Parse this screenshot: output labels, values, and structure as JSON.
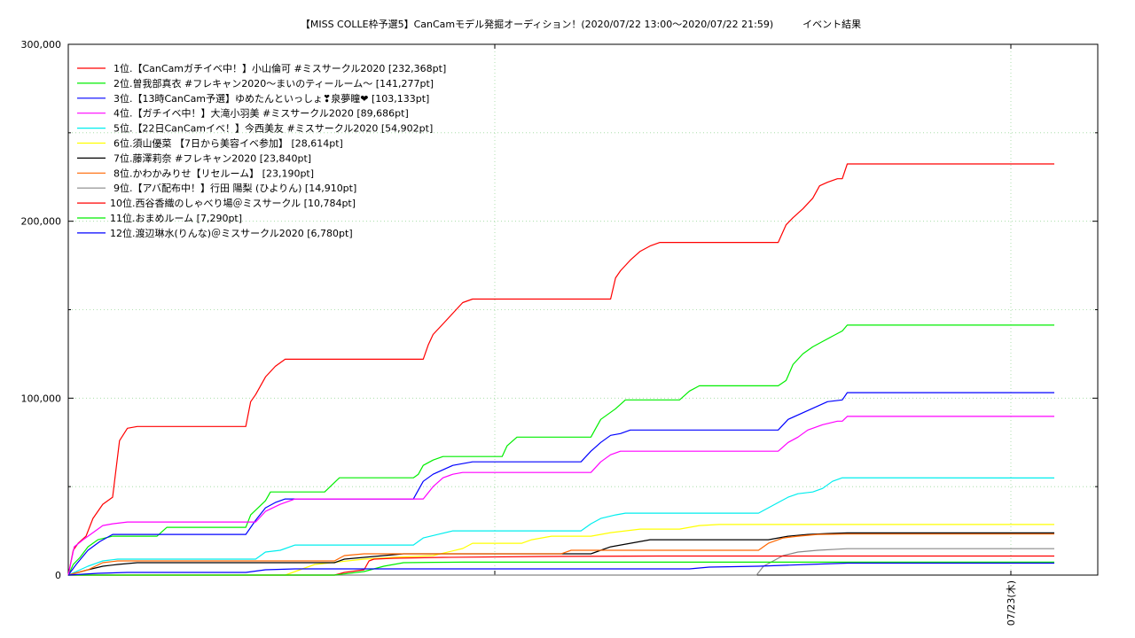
{
  "chart_data": {
    "type": "line",
    "title": "【MISS COLLE枠予選5】CanCamモデル発掘オーディション！(2020/07/22 13:00〜2020/07/22 21:59)　　　イベント結果",
    "xlabel": "",
    "ylabel": "",
    "ylim": [
      0,
      300000
    ],
    "xlim": [
      0,
      1
    ],
    "y_ticks": [
      "0",
      "100,000",
      "200,000",
      "300,000"
    ],
    "x_ticks": [
      {
        "x": 0.95,
        "label": "07/23(木)"
      }
    ],
    "grid": true,
    "legend_position": "top-left",
    "series": [
      {
        "name": "1位.【CanCamガチイベ中！】小山倫可 #ミスサークル2020 [232,368pt]",
        "color": "#ff0000",
        "points": [
          [
            0,
            0
          ],
          [
            0.005,
            14000
          ],
          [
            0.01,
            18000
          ],
          [
            0.018,
            22000
          ],
          [
            0.025,
            32000
          ],
          [
            0.035,
            40000
          ],
          [
            0.045,
            44000
          ],
          [
            0.052,
            76000
          ],
          [
            0.06,
            83000
          ],
          [
            0.07,
            84000
          ],
          [
            0.18,
            84000
          ],
          [
            0.185,
            98000
          ],
          [
            0.19,
            102000
          ],
          [
            0.2,
            112000
          ],
          [
            0.21,
            118000
          ],
          [
            0.22,
            122000
          ],
          [
            0.36,
            122000
          ],
          [
            0.365,
            130000
          ],
          [
            0.37,
            136000
          ],
          [
            0.38,
            142000
          ],
          [
            0.39,
            148000
          ],
          [
            0.4,
            154000
          ],
          [
            0.41,
            156000
          ],
          [
            0.55,
            156000
          ],
          [
            0.555,
            168000
          ],
          [
            0.56,
            172000
          ],
          [
            0.57,
            178000
          ],
          [
            0.58,
            183000
          ],
          [
            0.59,
            186000
          ],
          [
            0.6,
            188000
          ],
          [
            0.72,
            188000
          ],
          [
            0.728,
            198000
          ],
          [
            0.735,
            202000
          ],
          [
            0.745,
            207000
          ],
          [
            0.755,
            213000
          ],
          [
            0.762,
            220000
          ],
          [
            0.77,
            222000
          ],
          [
            0.78,
            224000
          ],
          [
            0.785,
            224000
          ],
          [
            0.79,
            232368
          ],
          [
            1,
            232368
          ]
        ]
      },
      {
        "name": "2位.曽我部真衣 #フレキャン2020〜まいのティールーム〜 [141,277pt]",
        "color": "#00ee00",
        "points": [
          [
            0,
            0
          ],
          [
            0.005,
            6000
          ],
          [
            0.012,
            10000
          ],
          [
            0.02,
            16000
          ],
          [
            0.03,
            20000
          ],
          [
            0.045,
            22000
          ],
          [
            0.09,
            22000
          ],
          [
            0.1,
            27000
          ],
          [
            0.18,
            27000
          ],
          [
            0.185,
            34000
          ],
          [
            0.2,
            42000
          ],
          [
            0.205,
            47000
          ],
          [
            0.26,
            47000
          ],
          [
            0.275,
            55000
          ],
          [
            0.35,
            55000
          ],
          [
            0.355,
            57000
          ],
          [
            0.36,
            62000
          ],
          [
            0.37,
            65000
          ],
          [
            0.38,
            67000
          ],
          [
            0.44,
            67000
          ],
          [
            0.445,
            73000
          ],
          [
            0.455,
            78000
          ],
          [
            0.53,
            78000
          ],
          [
            0.535,
            83000
          ],
          [
            0.54,
            88000
          ],
          [
            0.555,
            94000
          ],
          [
            0.565,
            99000
          ],
          [
            0.62,
            99000
          ],
          [
            0.63,
            104000
          ],
          [
            0.64,
            107000
          ],
          [
            0.72,
            107000
          ],
          [
            0.728,
            110000
          ],
          [
            0.735,
            119000
          ],
          [
            0.745,
            125000
          ],
          [
            0.755,
            129000
          ],
          [
            0.765,
            132000
          ],
          [
            0.775,
            135000
          ],
          [
            0.785,
            138000
          ],
          [
            0.79,
            141277
          ],
          [
            1,
            141277
          ]
        ]
      },
      {
        "name": "3位.【13時CanCam予選】ゆめたんといっしょ❣泉夢瞳❤ [103,133pt]",
        "color": "#0000ff",
        "points": [
          [
            0,
            0
          ],
          [
            0.008,
            6000
          ],
          [
            0.02,
            14000
          ],
          [
            0.032,
            19000
          ],
          [
            0.045,
            23000
          ],
          [
            0.18,
            23000
          ],
          [
            0.19,
            31000
          ],
          [
            0.2,
            38000
          ],
          [
            0.21,
            41000
          ],
          [
            0.22,
            43000
          ],
          [
            0.35,
            43000
          ],
          [
            0.36,
            53000
          ],
          [
            0.37,
            57000
          ],
          [
            0.39,
            62000
          ],
          [
            0.41,
            64000
          ],
          [
            0.52,
            64000
          ],
          [
            0.53,
            70000
          ],
          [
            0.54,
            75000
          ],
          [
            0.55,
            79000
          ],
          [
            0.56,
            80000
          ],
          [
            0.57,
            82000
          ],
          [
            0.72,
            82000
          ],
          [
            0.73,
            88000
          ],
          [
            0.75,
            93000
          ],
          [
            0.77,
            98000
          ],
          [
            0.785,
            99000
          ],
          [
            0.79,
            103133
          ],
          [
            1,
            103133
          ]
        ]
      },
      {
        "name": "4位.【ガチイベ中！】大滝小羽美 #ミスサークル2020 [89,686pt]",
        "color": "#ff00ff",
        "points": [
          [
            0,
            0
          ],
          [
            0.006,
            16000
          ],
          [
            0.015,
            20000
          ],
          [
            0.025,
            24000
          ],
          [
            0.035,
            28000
          ],
          [
            0.045,
            29000
          ],
          [
            0.06,
            30000
          ],
          [
            0.19,
            30000
          ],
          [
            0.2,
            36000
          ],
          [
            0.215,
            40000
          ],
          [
            0.23,
            43000
          ],
          [
            0.36,
            43000
          ],
          [
            0.37,
            50000
          ],
          [
            0.38,
            55000
          ],
          [
            0.39,
            57000
          ],
          [
            0.4,
            58000
          ],
          [
            0.53,
            58000
          ],
          [
            0.54,
            64000
          ],
          [
            0.55,
            68000
          ],
          [
            0.56,
            70000
          ],
          [
            0.72,
            70000
          ],
          [
            0.73,
            75000
          ],
          [
            0.74,
            78000
          ],
          [
            0.75,
            82000
          ],
          [
            0.765,
            85000
          ],
          [
            0.78,
            87000
          ],
          [
            0.785,
            87000
          ],
          [
            0.79,
            89686
          ],
          [
            1,
            89686
          ]
        ]
      },
      {
        "name": "5位.【22日CanCamイベ！】今西美友 #ミスサークル2020 [54,902pt]",
        "color": "#00eeee",
        "points": [
          [
            0,
            0
          ],
          [
            0.02,
            5000
          ],
          [
            0.035,
            8000
          ],
          [
            0.05,
            9000
          ],
          [
            0.19,
            9000
          ],
          [
            0.2,
            13000
          ],
          [
            0.215,
            14000
          ],
          [
            0.23,
            17000
          ],
          [
            0.35,
            17000
          ],
          [
            0.36,
            21000
          ],
          [
            0.375,
            23000
          ],
          [
            0.39,
            25000
          ],
          [
            0.52,
            25000
          ],
          [
            0.53,
            29000
          ],
          [
            0.54,
            32000
          ],
          [
            0.555,
            34000
          ],
          [
            0.565,
            35000
          ],
          [
            0.7,
            35000
          ],
          [
            0.71,
            38000
          ],
          [
            0.72,
            41000
          ],
          [
            0.73,
            44000
          ],
          [
            0.74,
            46000
          ],
          [
            0.755,
            47000
          ],
          [
            0.765,
            49000
          ],
          [
            0.775,
            53000
          ],
          [
            0.785,
            55000
          ],
          [
            1,
            54902
          ]
        ]
      },
      {
        "name": "6位.須山優菜 【7日から美容イベ参加】 [28,614pt]",
        "color": "#ffff00",
        "points": [
          [
            0,
            0
          ],
          [
            0.22,
            0
          ],
          [
            0.25,
            6000
          ],
          [
            0.3,
            9000
          ],
          [
            0.33,
            10000
          ],
          [
            0.37,
            11000
          ],
          [
            0.4,
            15000
          ],
          [
            0.41,
            18000
          ],
          [
            0.46,
            18000
          ],
          [
            0.47,
            20000
          ],
          [
            0.49,
            22000
          ],
          [
            0.53,
            22000
          ],
          [
            0.54,
            23000
          ],
          [
            0.55,
            24000
          ],
          [
            0.58,
            26000
          ],
          [
            0.62,
            26000
          ],
          [
            0.64,
            28000
          ],
          [
            0.66,
            28600
          ],
          [
            1,
            28614
          ]
        ]
      },
      {
        "name": "7位.藤澤莉奈 #フレキャン2020 [23,840pt]",
        "color": "#000000",
        "points": [
          [
            0,
            0
          ],
          [
            0.02,
            3000
          ],
          [
            0.035,
            5000
          ],
          [
            0.05,
            6000
          ],
          [
            0.07,
            7000
          ],
          [
            0.27,
            7000
          ],
          [
            0.28,
            9000
          ],
          [
            0.3,
            10000
          ],
          [
            0.32,
            11000
          ],
          [
            0.34,
            12000
          ],
          [
            0.53,
            12000
          ],
          [
            0.54,
            14000
          ],
          [
            0.55,
            16000
          ],
          [
            0.56,
            17000
          ],
          [
            0.58,
            19000
          ],
          [
            0.59,
            20000
          ],
          [
            0.71,
            20000
          ],
          [
            0.72,
            21000
          ],
          [
            0.73,
            22000
          ],
          [
            0.75,
            23000
          ],
          [
            0.77,
            23500
          ],
          [
            0.79,
            23840
          ],
          [
            1,
            23840
          ]
        ]
      },
      {
        "name": "8位.かわかみりせ【リセルーム】 [23,190pt]",
        "color": "#ff6600",
        "points": [
          [
            0,
            0
          ],
          [
            0.02,
            3000
          ],
          [
            0.035,
            7000
          ],
          [
            0.05,
            8000
          ],
          [
            0.27,
            8000
          ],
          [
            0.28,
            11000
          ],
          [
            0.3,
            12000
          ],
          [
            0.5,
            12000
          ],
          [
            0.51,
            14000
          ],
          [
            0.7,
            14000
          ],
          [
            0.71,
            18000
          ],
          [
            0.725,
            21000
          ],
          [
            0.74,
            22000
          ],
          [
            0.76,
            23000
          ],
          [
            0.79,
            23190
          ],
          [
            1,
            23190
          ]
        ]
      },
      {
        "name": "9位.【アバ配布中！】行田 陽梨 (ひよりん) [14,910pt]",
        "color": "#888888",
        "points": [
          [
            0,
            0
          ],
          [
            0.698,
            0
          ],
          [
            0.705,
            5000
          ],
          [
            0.715,
            8000
          ],
          [
            0.725,
            11000
          ],
          [
            0.74,
            13000
          ],
          [
            0.76,
            14000
          ],
          [
            0.78,
            14600
          ],
          [
            0.79,
            14910
          ],
          [
            1,
            14910
          ]
        ]
      },
      {
        "name": "10位.西谷香織のしゃべり場＠ミスサークル [10,784pt]",
        "color": "#ff0000",
        "points": [
          [
            0,
            0
          ],
          [
            0.27,
            0
          ],
          [
            0.28,
            1500
          ],
          [
            0.3,
            3000
          ],
          [
            0.305,
            8000
          ],
          [
            0.31,
            9000
          ],
          [
            0.33,
            9500
          ],
          [
            0.38,
            10000
          ],
          [
            0.48,
            10500
          ],
          [
            0.6,
            10784
          ],
          [
            1,
            10784
          ]
        ]
      },
      {
        "name": "11位.おまめルーム [7,290pt]",
        "color": "#00ee00",
        "points": [
          [
            0,
            0
          ],
          [
            0.27,
            0
          ],
          [
            0.3,
            2000
          ],
          [
            0.32,
            5000
          ],
          [
            0.34,
            7000
          ],
          [
            0.37,
            7200
          ],
          [
            0.4,
            7290
          ],
          [
            1,
            7290
          ]
        ]
      },
      {
        "name": "12位.渡辺琳水(りんな)＠ミスサークル2020 [6,780pt]",
        "color": "#0000ff",
        "points": [
          [
            0,
            0
          ],
          [
            0.03,
            1000
          ],
          [
            0.06,
            1500
          ],
          [
            0.18,
            1500
          ],
          [
            0.2,
            3000
          ],
          [
            0.23,
            3500
          ],
          [
            0.35,
            3500
          ],
          [
            0.63,
            3500
          ],
          [
            0.65,
            4500
          ],
          [
            0.7,
            5000
          ],
          [
            0.75,
            6000
          ],
          [
            0.79,
            6780
          ],
          [
            1,
            6780
          ]
        ]
      }
    ]
  }
}
